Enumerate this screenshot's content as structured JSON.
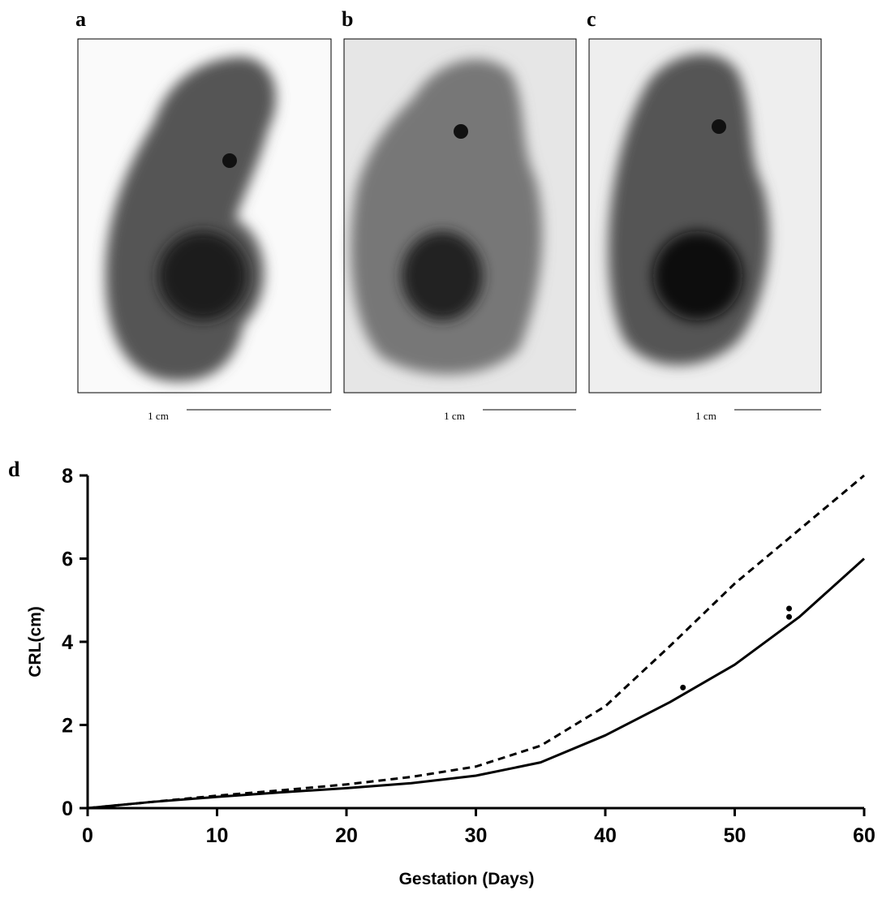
{
  "panels": [
    {
      "label": "a",
      "scale": "1 cm"
    },
    {
      "label": "b",
      "scale": "1 cm"
    },
    {
      "label": "c",
      "scale": "1 cm"
    }
  ],
  "chart_data": {
    "type": "line",
    "label": "d",
    "x_label": "Gestation (Days)",
    "y_label": "CRL(cm)",
    "x": [
      0,
      5,
      10,
      15,
      20,
      25,
      30,
      35,
      40,
      45,
      50,
      55,
      60
    ],
    "series": [
      {
        "color": "#000000",
        "dash": false,
        "values": [
          0,
          0.15,
          0.27,
          0.38,
          0.48,
          0.6,
          0.78,
          1.1,
          1.75,
          2.55,
          3.45,
          4.6,
          6.0
        ]
      },
      {
        "color": "#000000",
        "dash": true,
        "values": [
          0,
          0.15,
          0.3,
          0.43,
          0.57,
          0.75,
          1.0,
          1.5,
          2.45,
          3.9,
          5.4,
          6.7,
          8.0
        ]
      },
      {
        "color": "#000000",
        "marker": "dot",
        "x": [
          46,
          54.2,
          54.2
        ],
        "values": [
          2.9,
          4.8,
          4.6
        ]
      }
    ],
    "xlim": [
      0,
      60
    ],
    "xticks": [
      0,
      10,
      20,
      30,
      40,
      50,
      60
    ],
    "ylim": [
      0,
      8
    ],
    "yticks": [
      0,
      2,
      4,
      6,
      8
    ]
  }
}
